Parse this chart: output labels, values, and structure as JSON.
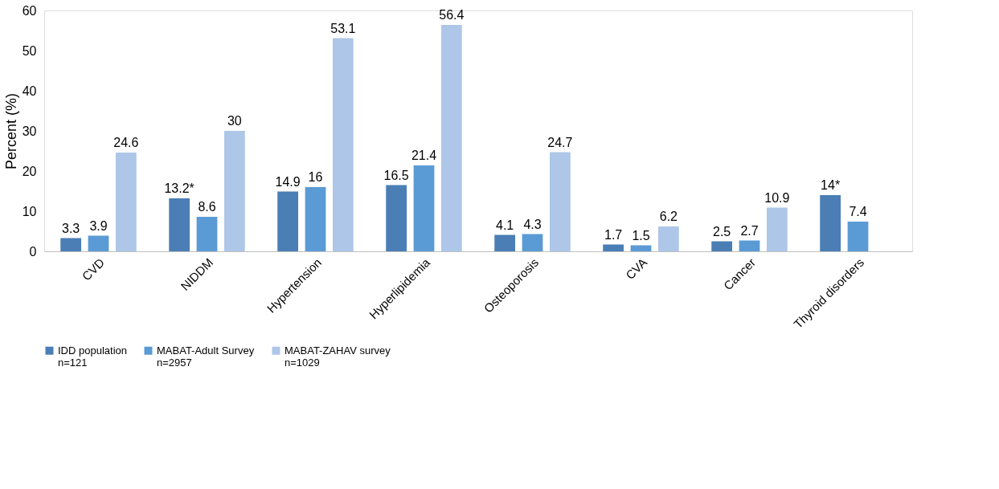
{
  "chart_data": {
    "type": "bar",
    "categories": [
      "CVD",
      "NIDDM",
      "Hypertension",
      "Hyperlipidemia",
      "Osteoporosis",
      "CVA",
      "Cancer",
      "Thyroid disorders"
    ],
    "series": [
      {
        "name": "IDD population\nn=121",
        "color": "#4a7eb5",
        "values": [
          3.3,
          13.2,
          14.9,
          16.5,
          4.1,
          1.7,
          2.5,
          14
        ],
        "value_labels": [
          "3.3",
          "13.2*",
          "14.9",
          "16.5",
          "4.1",
          "1.7",
          "2.5",
          "14*"
        ]
      },
      {
        "name": "MABAT-Adult Survey\nn=2957",
        "color": "#5b9bd5",
        "values": [
          3.9,
          8.6,
          16,
          21.4,
          4.3,
          1.5,
          2.7,
          7.4
        ],
        "value_labels": [
          "3.9",
          "8.6",
          "16",
          "21.4",
          "4.3",
          "1.5",
          "2.7",
          "7.4"
        ]
      },
      {
        "name": "MABAT-ZAHAV survey\nn=1029",
        "color": "#aec7e8",
        "values": [
          24.6,
          30,
          53.1,
          56.4,
          24.7,
          6.2,
          10.9,
          null
        ],
        "value_labels": [
          "24.6",
          "30",
          "53.1",
          "56.4",
          "24.7",
          "6.2",
          "10.9",
          null
        ]
      }
    ],
    "ylabel": "Percent (%)",
    "ylim": [
      0,
      60
    ],
    "yticks": [
      0,
      10,
      20,
      30,
      40,
      50,
      60
    ],
    "grid": false,
    "legend": "bottom"
  }
}
